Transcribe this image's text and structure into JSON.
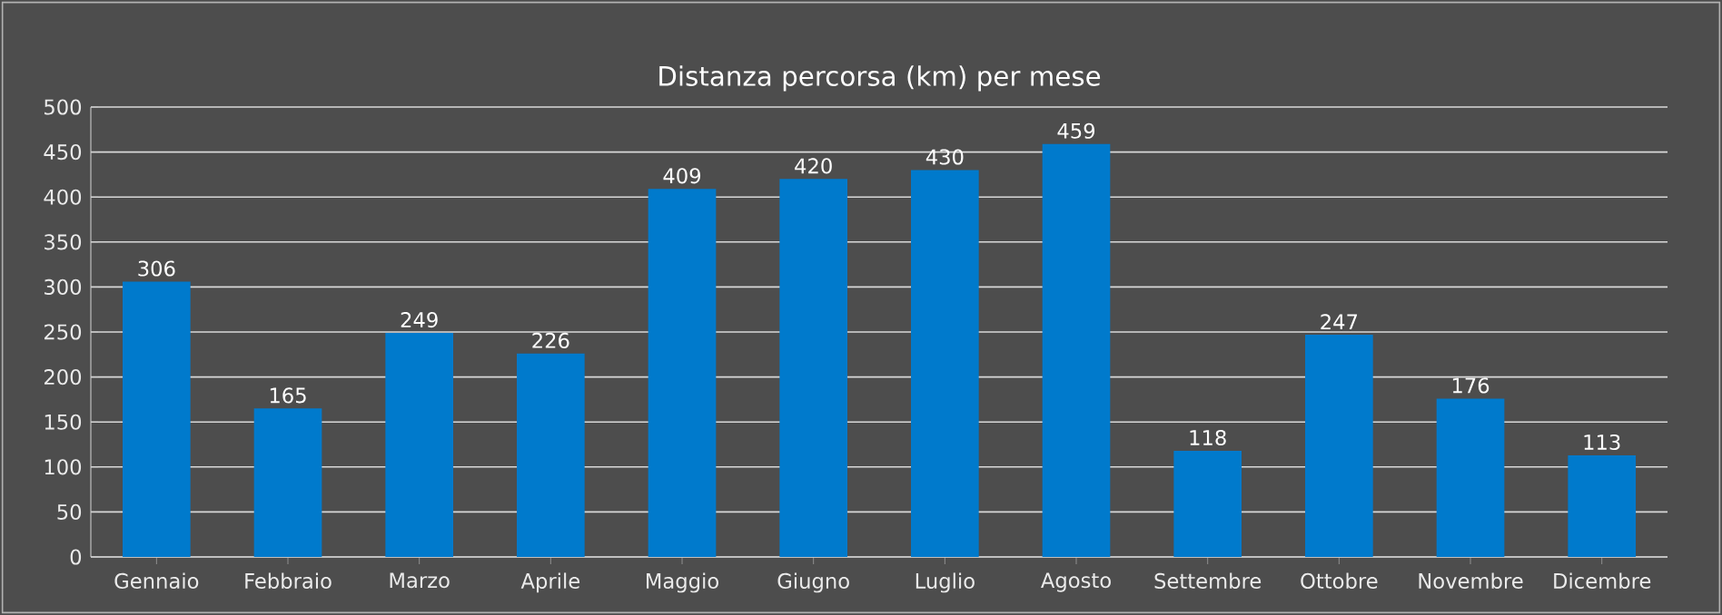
{
  "chart_data": {
    "type": "bar",
    "title": "Distanza percorsa (km) per mese",
    "categories": [
      "Gennaio",
      "Febbraio",
      "Marzo",
      "Aprile",
      "Maggio",
      "Giugno",
      "Luglio",
      "Agosto",
      "Settembre",
      "Ottobre",
      "Novembre",
      "Dicembre"
    ],
    "values": [
      306,
      165,
      249,
      226,
      409,
      420,
      430,
      459,
      118,
      247,
      176,
      113
    ],
    "color": "#007acc",
    "ylim": [
      0,
      500
    ],
    "yticks": [
      0,
      50,
      100,
      150,
      200,
      250,
      300,
      350,
      400,
      450,
      500
    ],
    "grid": "y",
    "data_labels": true
  }
}
